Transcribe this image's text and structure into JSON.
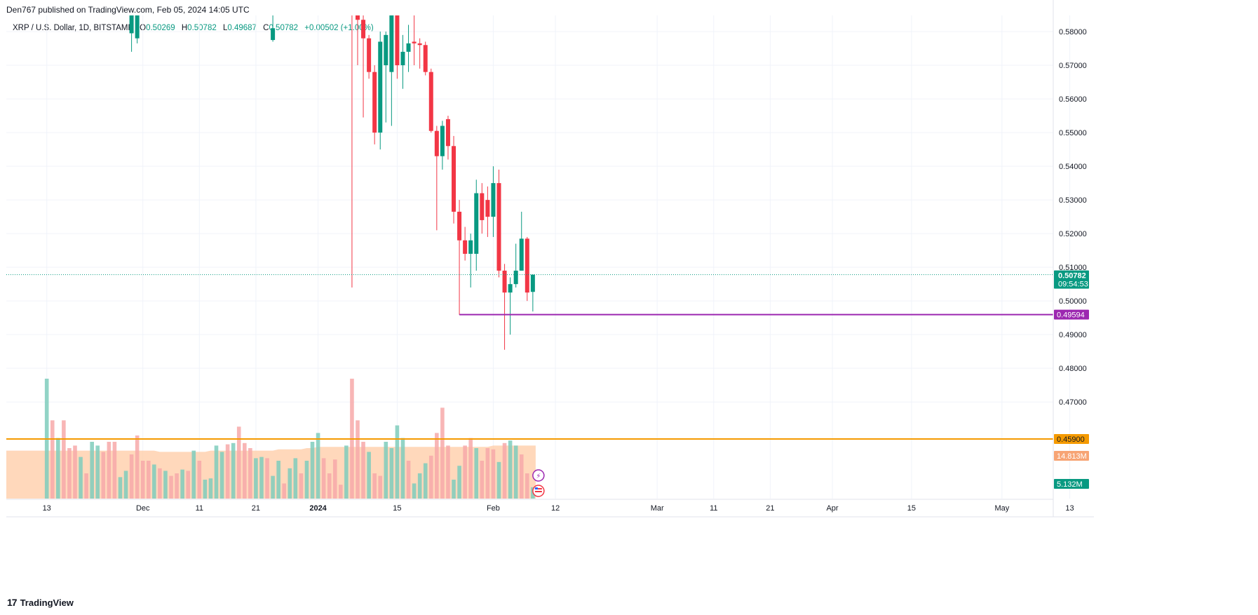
{
  "header": {
    "published": "Den767 published on TradingView.com, Feb 05, 2024 14:05 UTC"
  },
  "legend": {
    "symbol": "XRP / U.S. Dollar, 1D, BITSTAMP",
    "o_label": "O",
    "o_value": "0.50269",
    "h_label": "H",
    "h_value": "0.50782",
    "l_label": "L",
    "l_value": "0.49687",
    "c_label": "C",
    "c_value": "0.50782",
    "change": "+0.00502 (+1.00%)"
  },
  "colors": {
    "up": "#089981",
    "down": "#f23645",
    "vol_up": "#7fcdbc",
    "vol_down": "#f7a9a9",
    "vol_ma_fill": "#ffcba4",
    "support": "#9c27b0",
    "level": "#f59a00",
    "grid": "#f0f3fa"
  },
  "footer": {
    "brand": "TradingView",
    "logo_icon": "tradingview-logo-icon"
  },
  "chart_data": {
    "type": "candlestick",
    "title": "XRP / U.S. Dollar, 1D, BITSTAMP",
    "y_ticks": [
      "0.58000",
      "0.57000",
      "0.56000",
      "0.55000",
      "0.54000",
      "0.53000",
      "0.52000",
      "0.51000",
      "0.50000",
      "0.49000",
      "0.48000",
      "0.47000"
    ],
    "ylim": [
      0.4413,
      0.5848
    ],
    "x_ticks": [
      {
        "label": "13",
        "day": 0
      },
      {
        "label": "Dec",
        "day": 17
      },
      {
        "label": "11",
        "day": 27
      },
      {
        "label": "21",
        "day": 37
      },
      {
        "label": "2024",
        "day": 48
      },
      {
        "label": "15",
        "day": 62
      },
      {
        "label": "Feb",
        "day": 79
      },
      {
        "label": "12",
        "day": 90
      },
      {
        "label": "Mar",
        "day": 108
      },
      {
        "label": "11",
        "day": 118
      },
      {
        "label": "21",
        "day": 128
      },
      {
        "label": "Apr",
        "day": 139
      },
      {
        "label": "15",
        "day": 153
      },
      {
        "label": "May",
        "day": 169
      },
      {
        "label": "13",
        "day": 181
      }
    ],
    "candles": [
      {
        "day": 15,
        "o": 0.5795,
        "h": 0.5875,
        "l": 0.574,
        "c": 0.5875
      },
      {
        "day": 16,
        "o": 0.578,
        "h": 0.5875,
        "l": 0.5765,
        "c": 0.5865
      },
      {
        "day": 40,
        "o": 0.5775,
        "h": 0.5875,
        "l": 0.577,
        "c": 0.581
      },
      {
        "day": 54,
        "o": 0.5875,
        "h": 0.5875,
        "l": 0.504,
        "c": 0.585
      },
      {
        "day": 55,
        "o": 0.5875,
        "h": 0.5875,
        "l": 0.57,
        "c": 0.5835
      },
      {
        "day": 56,
        "o": 0.5835,
        "h": 0.5875,
        "l": 0.5545,
        "c": 0.578
      },
      {
        "day": 57,
        "o": 0.578,
        "h": 0.579,
        "l": 0.566,
        "c": 0.568
      },
      {
        "day": 58,
        "o": 0.568,
        "h": 0.57,
        "l": 0.5465,
        "c": 0.55
      },
      {
        "day": 59,
        "o": 0.55,
        "h": 0.58,
        "l": 0.545,
        "c": 0.577
      },
      {
        "day": 60,
        "o": 0.57,
        "h": 0.58,
        "l": 0.553,
        "c": 0.579
      },
      {
        "day": 61,
        "o": 0.568,
        "h": 0.5875,
        "l": 0.552,
        "c": 0.5875
      },
      {
        "day": 62,
        "o": 0.5875,
        "h": 0.5875,
        "l": 0.566,
        "c": 0.57
      },
      {
        "day": 63,
        "o": 0.57,
        "h": 0.579,
        "l": 0.563,
        "c": 0.574
      },
      {
        "day": 64,
        "o": 0.574,
        "h": 0.582,
        "l": 0.568,
        "c": 0.5765
      },
      {
        "day": 65,
        "o": 0.577,
        "h": 0.5875,
        "l": 0.57,
        "c": 0.5765
      },
      {
        "day": 66,
        "o": 0.5765,
        "h": 0.578,
        "l": 0.569,
        "c": 0.576
      },
      {
        "day": 67,
        "o": 0.576,
        "h": 0.577,
        "l": 0.567,
        "c": 0.568
      },
      {
        "day": 68,
        "o": 0.568,
        "h": 0.569,
        "l": 0.55,
        "c": 0.5505
      },
      {
        "day": 69,
        "o": 0.5505,
        "h": 0.552,
        "l": 0.521,
        "c": 0.543
      },
      {
        "day": 70,
        "o": 0.543,
        "h": 0.5535,
        "l": 0.539,
        "c": 0.552
      },
      {
        "day": 71,
        "o": 0.554,
        "h": 0.555,
        "l": 0.542,
        "c": 0.546
      },
      {
        "day": 72,
        "o": 0.546,
        "h": 0.549,
        "l": 0.523,
        "c": 0.5265
      },
      {
        "day": 73,
        "o": 0.5265,
        "h": 0.53,
        "l": 0.4959,
        "c": 0.518
      },
      {
        "day": 74,
        "o": 0.518,
        "h": 0.522,
        "l": 0.512,
        "c": 0.514
      },
      {
        "day": 75,
        "o": 0.514,
        "h": 0.52,
        "l": 0.504,
        "c": 0.518
      },
      {
        "day": 76,
        "o": 0.514,
        "h": 0.536,
        "l": 0.509,
        "c": 0.532
      },
      {
        "day": 77,
        "o": 0.532,
        "h": 0.535,
        "l": 0.52,
        "c": 0.524
      },
      {
        "day": 78,
        "o": 0.53,
        "h": 0.534,
        "l": 0.519,
        "c": 0.525
      },
      {
        "day": 79,
        "o": 0.525,
        "h": 0.54,
        "l": 0.519,
        "c": 0.535
      },
      {
        "day": 80,
        "o": 0.535,
        "h": 0.539,
        "l": 0.507,
        "c": 0.509
      },
      {
        "day": 81,
        "o": 0.509,
        "h": 0.511,
        "l": 0.4855,
        "c": 0.5025
      },
      {
        "day": 82,
        "o": 0.5025,
        "h": 0.507,
        "l": 0.49,
        "c": 0.505
      },
      {
        "day": 83,
        "o": 0.505,
        "h": 0.517,
        "l": 0.504,
        "c": 0.509
      },
      {
        "day": 84,
        "o": 0.509,
        "h": 0.5265,
        "l": 0.509,
        "c": 0.5185
      },
      {
        "day": 85,
        "o": 0.5185,
        "h": 0.519,
        "l": 0.5,
        "c": 0.5025
      },
      {
        "day": 86,
        "o": 0.50269,
        "h": 0.50782,
        "l": 0.49687,
        "c": 0.50782
      }
    ],
    "volume_bars": [
      {
        "day": 0,
        "v": 0.95,
        "up": true
      },
      {
        "day": 1,
        "v": 0.62,
        "up": false
      },
      {
        "day": 2,
        "v": 0.48,
        "up": true
      },
      {
        "day": 3,
        "v": 0.62,
        "up": false
      },
      {
        "day": 4,
        "v": 0.4,
        "up": false
      },
      {
        "day": 5,
        "v": 0.42,
        "up": false
      },
      {
        "day": 6,
        "v": 0.33,
        "up": true
      },
      {
        "day": 7,
        "v": 0.2,
        "up": false
      },
      {
        "day": 8,
        "v": 0.45,
        "up": true
      },
      {
        "day": 9,
        "v": 0.42,
        "up": true
      },
      {
        "day": 10,
        "v": 0.37,
        "up": false
      },
      {
        "day": 11,
        "v": 0.45,
        "up": false
      },
      {
        "day": 12,
        "v": 0.45,
        "up": false
      },
      {
        "day": 13,
        "v": 0.17,
        "up": true
      },
      {
        "day": 14,
        "v": 0.22,
        "up": true
      },
      {
        "day": 15,
        "v": 0.35,
        "up": false
      },
      {
        "day": 16,
        "v": 0.5,
        "up": false
      },
      {
        "day": 17,
        "v": 0.3,
        "up": false
      },
      {
        "day": 18,
        "v": 0.3,
        "up": false
      },
      {
        "day": 19,
        "v": 0.27,
        "up": true
      },
      {
        "day": 20,
        "v": 0.24,
        "up": false
      },
      {
        "day": 21,
        "v": 0.22,
        "up": true
      },
      {
        "day": 22,
        "v": 0.18,
        "up": false
      },
      {
        "day": 23,
        "v": 0.2,
        "up": false
      },
      {
        "day": 24,
        "v": 0.23,
        "up": true
      },
      {
        "day": 25,
        "v": 0.22,
        "up": false
      },
      {
        "day": 26,
        "v": 0.38,
        "up": true
      },
      {
        "day": 27,
        "v": 0.3,
        "up": false
      },
      {
        "day": 28,
        "v": 0.15,
        "up": true
      },
      {
        "day": 29,
        "v": 0.16,
        "up": true
      },
      {
        "day": 30,
        "v": 0.42,
        "up": true
      },
      {
        "day": 31,
        "v": 0.37,
        "up": true
      },
      {
        "day": 32,
        "v": 0.43,
        "up": false
      },
      {
        "day": 33,
        "v": 0.44,
        "up": true
      },
      {
        "day": 34,
        "v": 0.57,
        "up": false
      },
      {
        "day": 35,
        "v": 0.44,
        "up": false
      },
      {
        "day": 36,
        "v": 0.4,
        "up": false
      },
      {
        "day": 37,
        "v": 0.32,
        "up": true
      },
      {
        "day": 38,
        "v": 0.33,
        "up": true
      },
      {
        "day": 39,
        "v": 0.32,
        "up": false
      },
      {
        "day": 40,
        "v": 0.18,
        "up": true
      },
      {
        "day": 41,
        "v": 0.3,
        "up": true
      },
      {
        "day": 42,
        "v": 0.12,
        "up": false
      },
      {
        "day": 43,
        "v": 0.24,
        "up": true
      },
      {
        "day": 44,
        "v": 0.32,
        "up": true
      },
      {
        "day": 45,
        "v": 0.2,
        "up": false
      },
      {
        "day": 46,
        "v": 0.3,
        "up": true
      },
      {
        "day": 47,
        "v": 0.45,
        "up": true
      },
      {
        "day": 48,
        "v": 0.52,
        "up": true
      },
      {
        "day": 49,
        "v": 0.32,
        "up": false
      },
      {
        "day": 50,
        "v": 0.2,
        "up": false
      },
      {
        "day": 51,
        "v": 0.31,
        "up": false
      },
      {
        "day": 52,
        "v": 0.11,
        "up": false
      },
      {
        "day": 53,
        "v": 0.42,
        "up": true
      },
      {
        "day": 54,
        "v": 0.95,
        "up": false
      },
      {
        "day": 55,
        "v": 0.62,
        "up": false
      },
      {
        "day": 56,
        "v": 0.45,
        "up": false
      },
      {
        "day": 57,
        "v": 0.37,
        "up": true
      },
      {
        "day": 58,
        "v": 0.2,
        "up": false
      },
      {
        "day": 59,
        "v": 0.18,
        "up": false
      },
      {
        "day": 60,
        "v": 0.45,
        "up": true
      },
      {
        "day": 61,
        "v": 0.4,
        "up": true
      },
      {
        "day": 62,
        "v": 0.58,
        "up": true
      },
      {
        "day": 63,
        "v": 0.48,
        "up": true
      },
      {
        "day": 64,
        "v": 0.3,
        "up": false
      },
      {
        "day": 65,
        "v": 0.12,
        "up": true
      },
      {
        "day": 66,
        "v": 0.2,
        "up": true
      },
      {
        "day": 67,
        "v": 0.28,
        "up": true
      },
      {
        "day": 68,
        "v": 0.34,
        "up": false
      },
      {
        "day": 69,
        "v": 0.52,
        "up": false
      },
      {
        "day": 70,
        "v": 0.72,
        "up": false
      },
      {
        "day": 71,
        "v": 0.42,
        "up": false
      },
      {
        "day": 72,
        "v": 0.15,
        "up": true
      },
      {
        "day": 73,
        "v": 0.26,
        "up": true
      },
      {
        "day": 74,
        "v": 0.42,
        "up": false
      },
      {
        "day": 75,
        "v": 0.48,
        "up": false
      },
      {
        "day": 76,
        "v": 0.4,
        "up": true
      },
      {
        "day": 77,
        "v": 0.3,
        "up": false
      },
      {
        "day": 78,
        "v": 0.4,
        "up": false
      },
      {
        "day": 79,
        "v": 0.39,
        "up": false
      },
      {
        "day": 80,
        "v": 0.29,
        "up": true
      },
      {
        "day": 81,
        "v": 0.44,
        "up": false
      },
      {
        "day": 82,
        "v": 0.46,
        "up": true
      },
      {
        "day": 83,
        "v": 0.42,
        "up": true
      },
      {
        "day": 84,
        "v": 0.35,
        "up": false
      },
      {
        "day": 85,
        "v": 0.2,
        "up": false
      },
      {
        "day": 86,
        "v": 0.09,
        "up": true
      }
    ],
    "volume_ma": [
      0.38,
      0.38,
      0.38,
      0.38,
      0.38,
      0.38,
      0.38,
      0.38,
      0.38,
      0.38,
      0.38,
      0.38,
      0.38,
      0.38,
      0.38,
      0.38,
      0.38,
      0.38,
      0.38,
      0.38,
      0.37,
      0.37,
      0.37,
      0.37,
      0.37,
      0.37,
      0.37,
      0.37,
      0.37,
      0.38,
      0.38,
      0.38,
      0.38,
      0.38,
      0.38,
      0.38,
      0.38,
      0.38,
      0.38,
      0.38,
      0.38,
      0.39,
      0.39,
      0.39,
      0.39,
      0.39,
      0.4,
      0.4,
      0.41,
      0.41,
      0.41,
      0.41,
      0.41,
      0.41,
      0.41,
      0.41,
      0.41,
      0.41,
      0.41,
      0.41,
      0.41,
      0.41,
      0.41,
      0.41,
      0.41,
      0.41,
      0.41,
      0.41,
      0.41,
      0.41,
      0.41,
      0.41,
      0.41,
      0.41,
      0.41,
      0.41,
      0.41,
      0.41,
      0.41,
      0.42,
      0.42,
      0.42,
      0.42,
      0.42,
      0.42,
      0.42,
      0.42
    ],
    "price_labels": {
      "last_price": "0.50782",
      "countdown": "09:54:53",
      "support_level": "0.49594",
      "level_2": "0.45900",
      "volume_ma_label": "14.813M",
      "volume_label": "5.132M"
    },
    "support_line": {
      "value": 0.49594,
      "from_day": 73
    },
    "level_line": {
      "value": 0.459
    },
    "last_price_line": {
      "value": 0.50782
    },
    "icons": [
      "lightning-event-icon",
      "us-flag-event-icon"
    ]
  }
}
